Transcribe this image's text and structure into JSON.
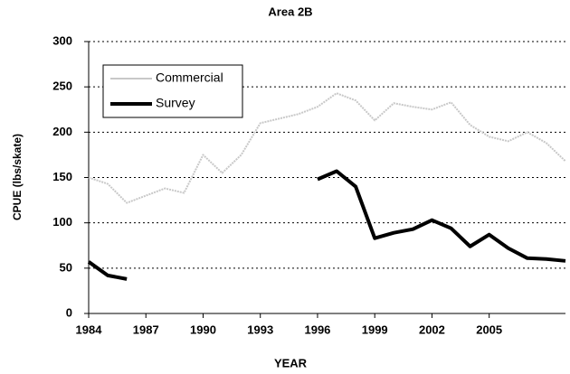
{
  "chart_data": {
    "type": "line",
    "title": "Area 2B",
    "xlabel": "YEAR",
    "ylabel": "CPUE (lbs/skate)",
    "x": [
      1984,
      1985,
      1986,
      1987,
      1988,
      1989,
      1990,
      1991,
      1992,
      1993,
      1994,
      1995,
      1996,
      1997,
      1998,
      1999,
      2000,
      2001,
      2002,
      2003,
      2004,
      2005,
      2006,
      2007,
      2008,
      2009
    ],
    "series": [
      {
        "name": "Commercial",
        "color": "#c8c8c8",
        "values": [
          150,
          143,
          122,
          130,
          138,
          133,
          175,
          155,
          175,
          210,
          215,
          220,
          228,
          243,
          235,
          213,
          232,
          228,
          225,
          233,
          208,
          195,
          190,
          200,
          188,
          168
        ]
      },
      {
        "name": "Survey",
        "color": "#000000",
        "values": [
          57,
          42,
          38,
          null,
          null,
          null,
          null,
          null,
          null,
          null,
          null,
          null,
          148,
          157,
          140,
          83,
          89,
          93,
          103,
          94,
          74,
          87,
          72,
          61,
          60,
          58
        ]
      }
    ],
    "xlim": [
      1984,
      2009
    ],
    "xticks": [
      1984,
      1987,
      1990,
      1993,
      1996,
      1999,
      2002,
      2005
    ],
    "ylim": [
      0,
      300
    ],
    "yticks": [
      0,
      50,
      100,
      150,
      200,
      250,
      300
    ],
    "grid": true,
    "legend": "upper left"
  }
}
